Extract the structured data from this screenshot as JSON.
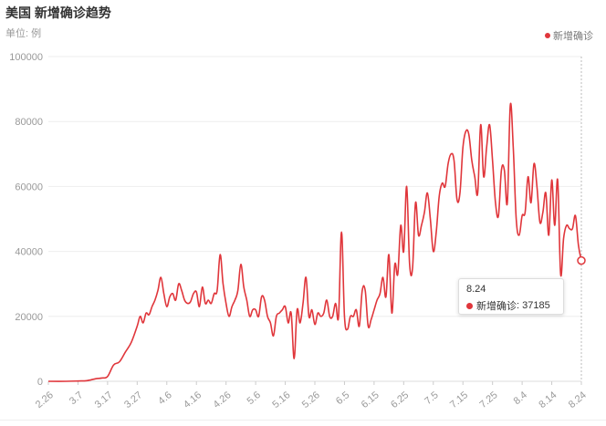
{
  "header": {
    "title": "美国 新增确诊趋势",
    "unit": "单位: 例",
    "legend_label": "新增确诊"
  },
  "tooltip": {
    "date": "8.24",
    "series_label": "新增确诊",
    "value_text": "37185"
  },
  "colors": {
    "line": "#e0363b",
    "grid": "#eeeeee",
    "axis_text": "#999999"
  },
  "chart_data": {
    "type": "line",
    "title": "美国 新增确诊趋势",
    "ylabel": "单位: 例",
    "legend": "top-right",
    "grid": true,
    "ylim": [
      0,
      100000
    ],
    "yticks": [
      0,
      20000,
      40000,
      60000,
      80000,
      100000
    ],
    "xticks": [
      "2.26",
      "3.7",
      "3.17",
      "3.27",
      "4.6",
      "4.16",
      "4.26",
      "5.6",
      "5.16",
      "5.26",
      "6.5",
      "6.15",
      "6.25",
      "7.5",
      "7.15",
      "7.25",
      "8.4",
      "8.14",
      "8.24"
    ],
    "series": [
      {
        "name": "新增确诊",
        "points": [
          [
            "2.26",
            0
          ],
          [
            "3.3",
            0
          ],
          [
            "3.7",
            100
          ],
          [
            "3.10",
            200
          ],
          [
            "3.13",
            800
          ],
          [
            "3.15",
            1000
          ],
          [
            "3.17",
            1500
          ],
          [
            "3.19",
            5000
          ],
          [
            "3.21",
            6000
          ],
          [
            "3.23",
            9000
          ],
          [
            "3.25",
            12000
          ],
          [
            "3.27",
            17000
          ],
          [
            "3.28",
            20000
          ],
          [
            "3.29",
            18000
          ],
          [
            "3.30",
            21000
          ],
          [
            "3.31",
            20500
          ],
          [
            "4.1",
            23000
          ],
          [
            "4.2",
            25000
          ],
          [
            "4.3",
            28000
          ],
          [
            "4.4",
            32000
          ],
          [
            "4.5",
            27000
          ],
          [
            "4.6",
            23000
          ],
          [
            "4.7",
            26000
          ],
          [
            "4.8",
            27000
          ],
          [
            "4.9",
            25000
          ],
          [
            "4.10",
            30000
          ],
          [
            "4.11",
            28000
          ],
          [
            "4.12",
            25000
          ],
          [
            "4.13",
            24000
          ],
          [
            "4.14",
            24500
          ],
          [
            "4.15",
            27000
          ],
          [
            "4.16",
            27500
          ],
          [
            "4.17",
            23000
          ],
          [
            "4.18",
            29000
          ],
          [
            "4.19",
            24000
          ],
          [
            "4.20",
            25000
          ],
          [
            "4.21",
            24000
          ],
          [
            "4.22",
            27000
          ],
          [
            "4.23",
            28000
          ],
          [
            "4.24",
            39000
          ],
          [
            "4.25",
            30000
          ],
          [
            "4.26",
            24000
          ],
          [
            "4.27",
            20000
          ],
          [
            "4.28",
            23000
          ],
          [
            "4.29",
            25000
          ],
          [
            "4.30",
            28000
          ],
          [
            "5.1",
            36000
          ],
          [
            "5.2",
            29000
          ],
          [
            "5.3",
            25000
          ],
          [
            "5.4",
            20000
          ],
          [
            "5.5",
            22000
          ],
          [
            "5.6",
            22000
          ],
          [
            "5.7",
            20000
          ],
          [
            "5.8",
            26000
          ],
          [
            "5.9",
            25000
          ],
          [
            "5.10",
            20000
          ],
          [
            "5.11",
            18000
          ],
          [
            "5.12",
            14000
          ],
          [
            "5.13",
            20000
          ],
          [
            "5.14",
            21000
          ],
          [
            "5.15",
            22000
          ],
          [
            "5.16",
            23000
          ],
          [
            "5.17",
            18000
          ],
          [
            "5.18",
            21000
          ],
          [
            "5.19",
            7000
          ],
          [
            "5.20",
            22000
          ],
          [
            "5.21",
            18000
          ],
          [
            "5.22",
            24000
          ],
          [
            "5.23",
            32000
          ],
          [
            "5.24",
            20000
          ],
          [
            "5.25",
            22000
          ],
          [
            "5.26",
            17500
          ],
          [
            "5.27",
            21000
          ],
          [
            "5.28",
            20000
          ],
          [
            "5.29",
            21000
          ],
          [
            "5.30",
            25000
          ],
          [
            "5.31",
            20000
          ],
          [
            "6.1",
            20000
          ],
          [
            "6.2",
            24000
          ],
          [
            "6.3",
            20000
          ],
          [
            "6.4",
            46000
          ],
          [
            "6.5",
            20000
          ],
          [
            "6.6",
            16000
          ],
          [
            "6.7",
            20000
          ],
          [
            "6.8",
            20000
          ],
          [
            "6.9",
            22000
          ],
          [
            "6.10",
            17000
          ],
          [
            "6.11",
            28000
          ],
          [
            "6.12",
            28000
          ],
          [
            "6.13",
            17000
          ],
          [
            "6.14",
            19000
          ],
          [
            "6.15",
            22000
          ],
          [
            "6.16",
            25000
          ],
          [
            "6.17",
            27000
          ],
          [
            "6.18",
            32000
          ],
          [
            "6.19",
            26000
          ],
          [
            "6.20",
            39000
          ],
          [
            "6.21",
            21000
          ],
          [
            "6.22",
            36000
          ],
          [
            "6.23",
            33000
          ],
          [
            "6.24",
            48000
          ],
          [
            "6.25",
            40000
          ],
          [
            "6.26",
            60000
          ],
          [
            "6.27",
            36000
          ],
          [
            "6.28",
            35000
          ],
          [
            "6.29",
            55000
          ],
          [
            "6.30",
            45000
          ],
          [
            "7.1",
            48000
          ],
          [
            "7.2",
            52000
          ],
          [
            "7.3",
            58000
          ],
          [
            "7.4",
            50000
          ],
          [
            "7.5",
            40000
          ],
          [
            "7.6",
            46000
          ],
          [
            "7.7",
            57000
          ],
          [
            "7.8",
            61000
          ],
          [
            "7.9",
            60000
          ],
          [
            "7.10",
            67000
          ],
          [
            "7.11",
            70000
          ],
          [
            "7.12",
            68000
          ],
          [
            "7.13",
            56000
          ],
          [
            "7.14",
            58000
          ],
          [
            "7.15",
            72000
          ],
          [
            "7.16",
            77000
          ],
          [
            "7.17",
            76000
          ],
          [
            "7.18",
            68000
          ],
          [
            "7.19",
            63000
          ],
          [
            "7.20",
            58000
          ],
          [
            "7.21",
            79000
          ],
          [
            "7.22",
            63000
          ],
          [
            "7.23",
            72000
          ],
          [
            "7.24",
            79000
          ],
          [
            "7.25",
            68000
          ],
          [
            "7.26",
            55000
          ],
          [
            "7.27",
            51000
          ],
          [
            "7.28",
            65000
          ],
          [
            "7.29",
            65000
          ],
          [
            "7.30",
            55000
          ],
          [
            "7.31",
            85000
          ],
          [
            "8.1",
            72000
          ],
          [
            "8.2",
            50000
          ],
          [
            "8.3",
            45000
          ],
          [
            "8.4",
            51000
          ],
          [
            "8.5",
            52000
          ],
          [
            "8.6",
            63000
          ],
          [
            "8.7",
            55000
          ],
          [
            "8.8",
            67000
          ],
          [
            "8.9",
            60000
          ],
          [
            "8.10",
            49000
          ],
          [
            "8.11",
            52000
          ],
          [
            "8.12",
            58000
          ],
          [
            "8.13",
            45000
          ],
          [
            "8.14",
            62000
          ],
          [
            "8.15",
            48000
          ],
          [
            "8.16",
            62000
          ],
          [
            "8.17",
            33000
          ],
          [
            "8.18",
            44000
          ],
          [
            "8.19",
            48000
          ],
          [
            "8.20",
            47000
          ],
          [
            "8.21",
            47000
          ],
          [
            "8.22",
            51000
          ],
          [
            "8.23",
            42000
          ],
          [
            "8.24",
            37185
          ]
        ]
      }
    ]
  }
}
